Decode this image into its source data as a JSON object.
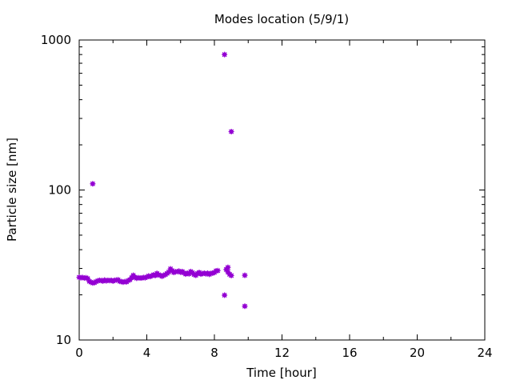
{
  "chart_data": {
    "type": "scatter",
    "title": "Modes location (5/9/1)",
    "xlabel": "Time [hour]",
    "ylabel": "Particle size [nm]",
    "xlim": [
      0,
      24
    ],
    "ylim": [
      10,
      1000
    ],
    "yscale": "log",
    "x_ticks": [
      "0",
      "4",
      "8",
      "12",
      "16",
      "20",
      "24"
    ],
    "y_ticks": [
      "10",
      "100",
      "1000"
    ],
    "grid": false,
    "marker_color": "#9400d3",
    "points": [
      [
        0.0,
        26.2
      ],
      [
        0.1,
        26.0
      ],
      [
        0.2,
        26.1
      ],
      [
        0.3,
        25.9
      ],
      [
        0.4,
        26.0
      ],
      [
        0.5,
        25.7
      ],
      [
        0.6,
        24.6
      ],
      [
        0.7,
        24.3
      ],
      [
        0.8,
        24.0
      ],
      [
        0.8,
        110
      ],
      [
        0.9,
        24.1
      ],
      [
        1.0,
        24.5
      ],
      [
        1.1,
        24.8
      ],
      [
        1.2,
        25.0
      ],
      [
        1.3,
        24.9
      ],
      [
        1.4,
        24.7
      ],
      [
        1.5,
        25.1
      ],
      [
        1.6,
        24.8
      ],
      [
        1.7,
        25.0
      ],
      [
        1.8,
        24.9
      ],
      [
        1.9,
        25.0
      ],
      [
        2.0,
        24.7
      ],
      [
        2.1,
        25.0
      ],
      [
        2.2,
        25.1
      ],
      [
        2.3,
        25.2
      ],
      [
        2.4,
        24.6
      ],
      [
        2.5,
        24.5
      ],
      [
        2.6,
        24.3
      ],
      [
        2.7,
        24.5
      ],
      [
        2.8,
        24.4
      ],
      [
        2.9,
        24.9
      ],
      [
        3.0,
        25.2
      ],
      [
        3.1,
        26.0
      ],
      [
        3.2,
        27.0
      ],
      [
        3.3,
        26.2
      ],
      [
        3.4,
        25.8
      ],
      [
        3.5,
        26.0
      ],
      [
        3.6,
        25.9
      ],
      [
        3.7,
        25.9
      ],
      [
        3.8,
        26.1
      ],
      [
        3.9,
        26.0
      ],
      [
        4.0,
        26.3
      ],
      [
        4.1,
        26.7
      ],
      [
        4.2,
        26.5
      ],
      [
        4.3,
        26.8
      ],
      [
        4.4,
        27.2
      ],
      [
        4.5,
        26.9
      ],
      [
        4.6,
        27.8
      ],
      [
        4.7,
        27.2
      ],
      [
        4.8,
        27.0
      ],
      [
        4.9,
        26.6
      ],
      [
        5.0,
        27.0
      ],
      [
        5.1,
        27.3
      ],
      [
        5.2,
        27.8
      ],
      [
        5.3,
        28.4
      ],
      [
        5.4,
        29.8
      ],
      [
        5.5,
        29.0
      ],
      [
        5.6,
        28.2
      ],
      [
        5.7,
        28.5
      ],
      [
        5.8,
        28.6
      ],
      [
        5.9,
        28.8
      ],
      [
        6.0,
        28.3
      ],
      [
        6.1,
        28.6
      ],
      [
        6.2,
        28.0
      ],
      [
        6.3,
        27.5
      ],
      [
        6.4,
        27.9
      ],
      [
        6.5,
        27.6
      ],
      [
        6.6,
        28.6
      ],
      [
        6.7,
        28.1
      ],
      [
        6.8,
        27.3
      ],
      [
        6.9,
        27.0
      ],
      [
        7.0,
        27.8
      ],
      [
        7.1,
        28.2
      ],
      [
        7.2,
        27.5
      ],
      [
        7.3,
        27.7
      ],
      [
        7.4,
        27.9
      ],
      [
        7.5,
        27.6
      ],
      [
        7.6,
        27.9
      ],
      [
        7.7,
        27.4
      ],
      [
        7.8,
        27.8
      ],
      [
        7.9,
        27.9
      ],
      [
        8.0,
        28.2
      ],
      [
        8.1,
        28.9
      ],
      [
        8.2,
        29.0
      ],
      [
        8.6,
        800
      ],
      [
        8.6,
        19.9
      ],
      [
        8.7,
        29.5
      ],
      [
        8.8,
        30.5
      ],
      [
        8.8,
        28.4
      ],
      [
        8.9,
        27.4
      ],
      [
        9.0,
        245
      ],
      [
        9.0,
        26.9
      ],
      [
        9.8,
        27.0
      ],
      [
        9.8,
        16.8
      ]
    ]
  }
}
